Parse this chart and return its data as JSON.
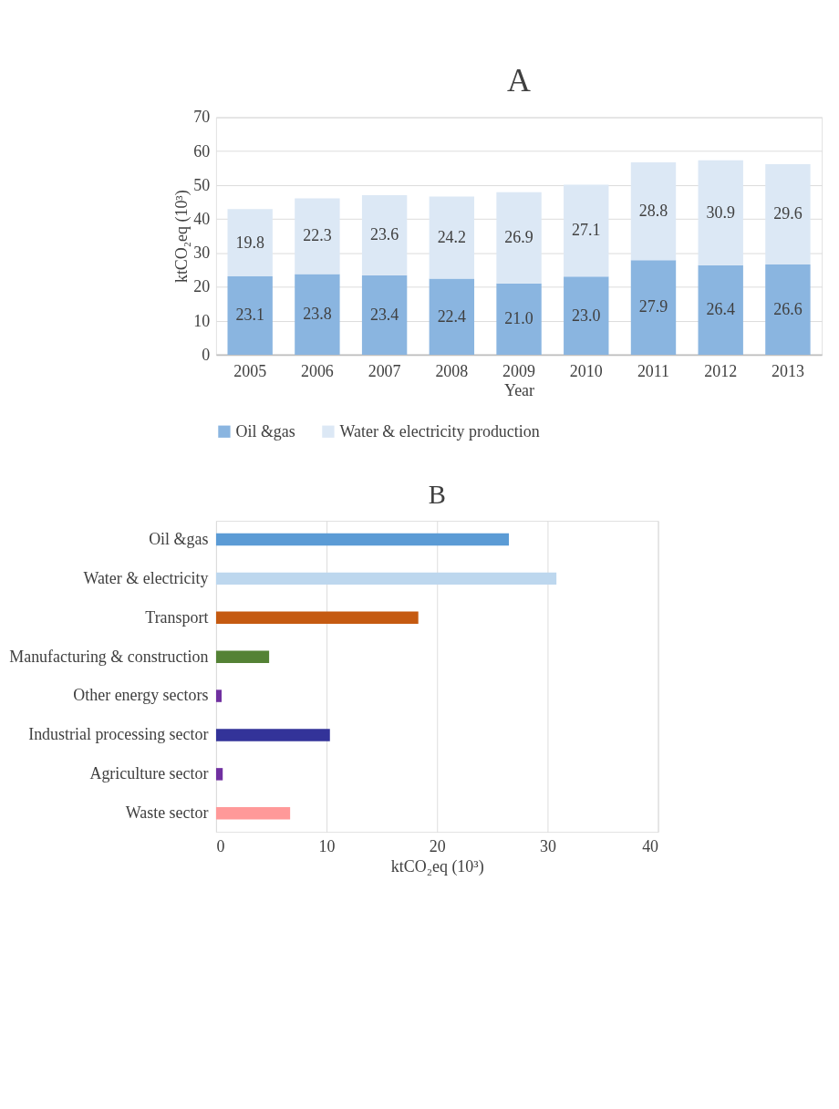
{
  "chart_data": [
    {
      "type": "bar",
      "title": "A",
      "xlabel": "Year",
      "ylabel": "ktCO₂eq (10³)",
      "categories": [
        "2005",
        "2006",
        "2007",
        "2008",
        "2009",
        "2010",
        "2011",
        "2012",
        "2013"
      ],
      "stacked": true,
      "series": [
        {
          "name": "Oil &gas",
          "color": "#8ab5e0",
          "values": [
            23.1,
            23.8,
            23.4,
            22.4,
            21.0,
            23.0,
            27.9,
            26.4,
            26.6
          ],
          "value_labels": [
            "23.1",
            "23.8",
            "23.4",
            "22.4",
            "21.0",
            "23.0",
            "27.9",
            "26.4",
            "26.6"
          ]
        },
        {
          "name": "Water & electricity production",
          "color": "#dce8f5",
          "values": [
            19.8,
            22.3,
            23.6,
            24.2,
            26.9,
            27.1,
            28.8,
            30.9,
            29.6
          ],
          "value_labels": [
            "19.8",
            "22.3",
            "23.6",
            "24.2",
            "26.9",
            "27.1",
            "28.8",
            "30.9",
            "29.6"
          ]
        }
      ],
      "ylim": [
        0,
        70
      ],
      "yticks": [
        0,
        10,
        20,
        30,
        40,
        50,
        60,
        70
      ],
      "grid": "y",
      "legend": "bottom"
    },
    {
      "type": "bar",
      "title": "B",
      "xlabel": "ktCO₂eq (10³)",
      "orientation": "horizontal",
      "categories": [
        "Oil &gas",
        "Water & electricity",
        "Transport",
        "Manufacturing & construction",
        "Other energy sectors",
        "Industrial processing sector",
        "Agriculture sector",
        "Waste sector"
      ],
      "values": [
        26.5,
        30.8,
        18.3,
        4.8,
        0.5,
        10.3,
        0.6,
        6.7
      ],
      "colors": [
        "#5b9bd5",
        "#bdd7ee",
        "#c55a11",
        "#548235",
        "#7030a0",
        "#333399",
        "#7030a0",
        "#ff9999"
      ],
      "xlim": [
        0,
        40
      ],
      "xticks": [
        0,
        10,
        20,
        30,
        40
      ],
      "grid": "x"
    }
  ]
}
